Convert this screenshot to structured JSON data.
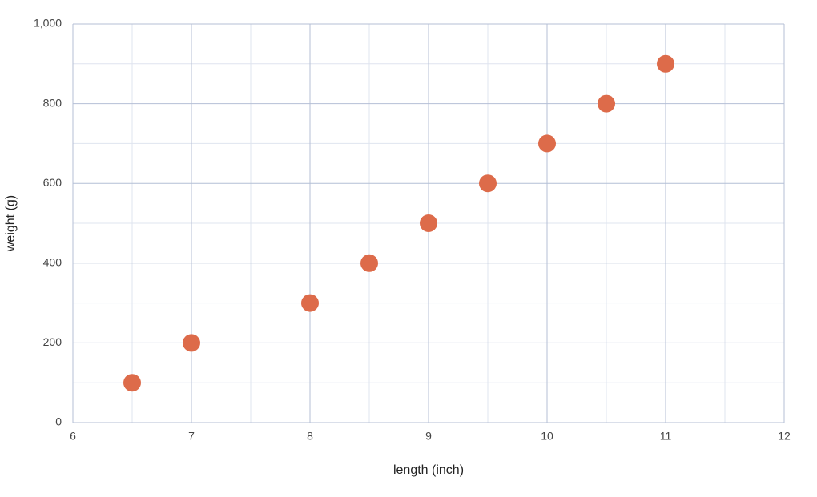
{
  "chart_data": {
    "type": "scatter",
    "x_label": "length (inch)",
    "y_label": "weight (g)",
    "x": [
      6.5,
      7,
      8,
      8.5,
      9,
      9.5,
      10,
      10.5,
      11
    ],
    "series": [
      {
        "color": "#dd6b4a",
        "values": [
          100,
          200,
          300,
          400,
          500,
          600,
          700,
          800,
          900
        ]
      }
    ],
    "xlim": [
      6,
      12
    ],
    "xticks": [
      6,
      7,
      8,
      9,
      10,
      11,
      12
    ],
    "ylim": [
      0,
      1000
    ],
    "yticks": [
      0,
      200,
      400,
      600,
      800,
      {
        "value": 1000,
        "label": "1,000"
      }
    ],
    "x_minor_gridlines": [
      6.5,
      7.5,
      8.5,
      9.5,
      10.5,
      11.5
    ],
    "y_minor_gridlines": [
      100,
      300,
      500,
      700,
      900
    ],
    "grid": true
  }
}
